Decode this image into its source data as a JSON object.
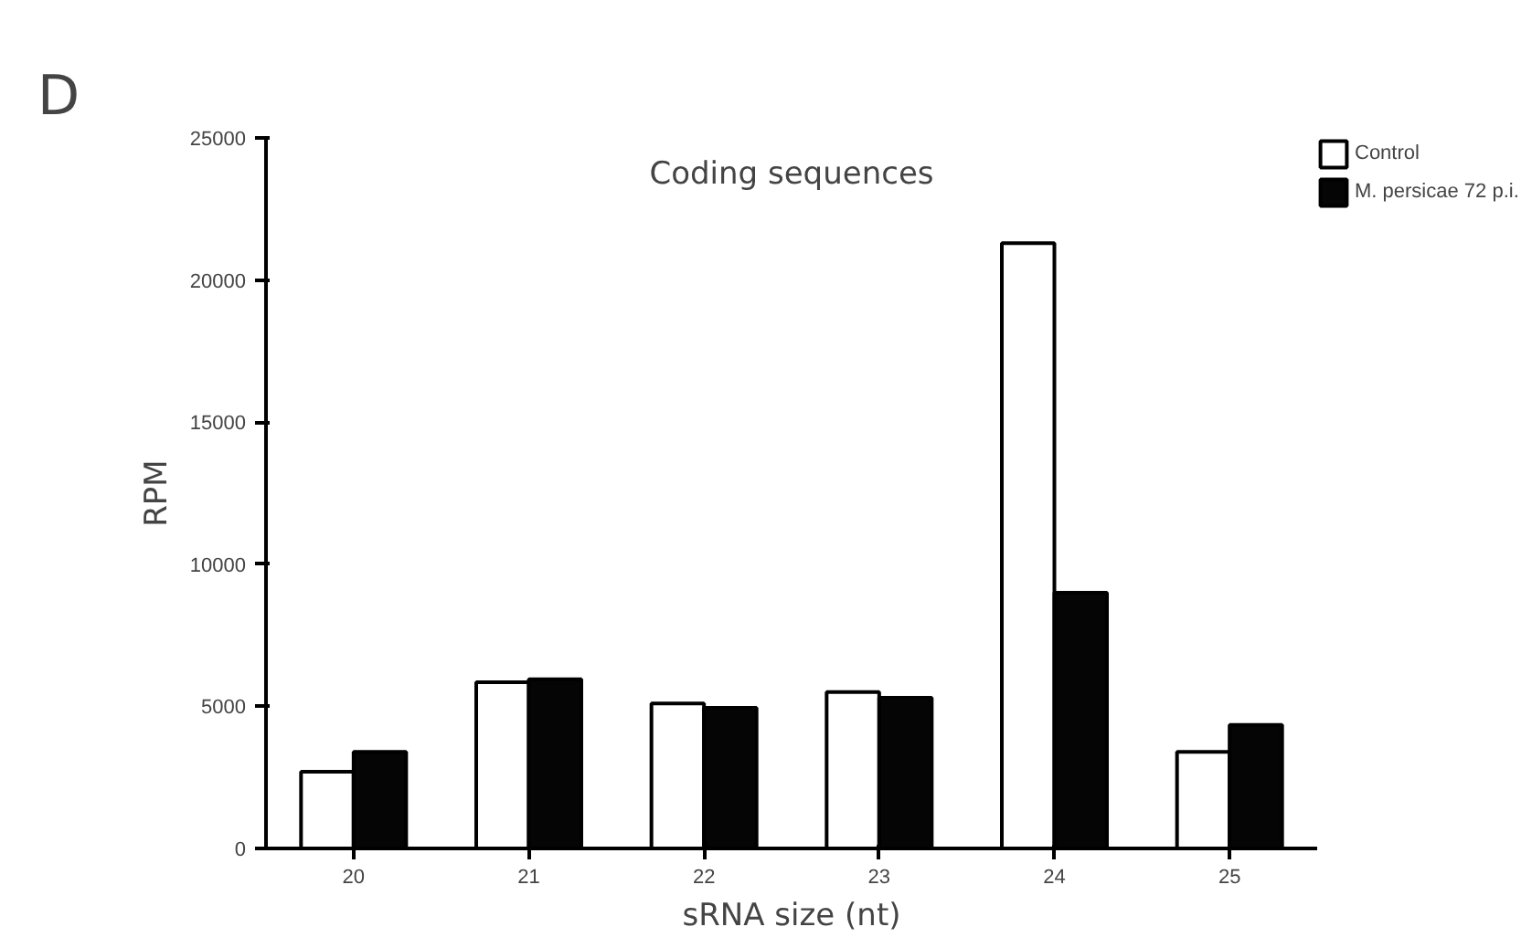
{
  "chart_data": {
    "type": "bar",
    "title": "Coding sequences",
    "xlabel": "sRNA size (nt)",
    "ylabel": "RPM",
    "annotations": [
      "D"
    ],
    "categories": [
      "20",
      "21",
      "22",
      "23",
      "24",
      "25"
    ],
    "series": [
      {
        "name": "Control",
        "color": "#ffffff",
        "values": [
          2700,
          5850,
          5100,
          5500,
          21300,
          3400
        ]
      },
      {
        "name": "M. persicae 72 p.i.",
        "color": "#050505",
        "values": [
          3400,
          5950,
          4950,
          5300,
          9000,
          4350
        ]
      }
    ],
    "ylim": [
      0,
      25000
    ],
    "yticks": [
      0,
      5000,
      10000,
      15000,
      20000,
      25000
    ],
    "grid": false,
    "legend": "top right"
  }
}
